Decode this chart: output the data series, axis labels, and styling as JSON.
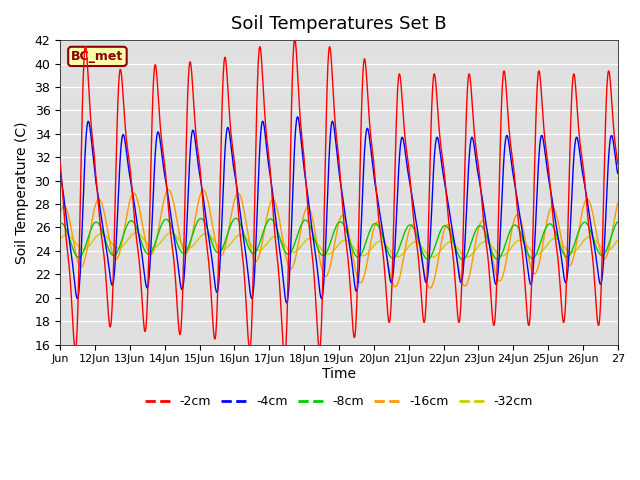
{
  "title": "Soil Temperatures Set B",
  "xlabel": "Time",
  "ylabel": "Soil Temperature (C)",
  "ylim": [
    16,
    42
  ],
  "yticks": [
    16,
    18,
    20,
    22,
    24,
    26,
    28,
    30,
    32,
    34,
    36,
    38,
    40,
    42
  ],
  "annotation": "BC_met",
  "bg_color": "#e0e0e0",
  "colors": {
    "-2cm": "#ff0000",
    "-4cm": "#0000ff",
    "-8cm": "#00cc00",
    "-16cm": "#ff9900",
    "-32cm": "#cccc00"
  },
  "legend_labels": [
    "-2cm",
    "-4cm",
    "-8cm",
    "-16cm",
    "-32cm"
  ],
  "xtick_labels": [
    "Jun",
    "12Jun",
    "13Jun",
    "14Jun",
    "15Jun",
    "16Jun",
    "17Jun",
    "18Jun",
    "19Jun",
    "20Jun",
    "21Jun",
    "22Jun",
    "23Jun",
    "24Jun",
    "25Jun",
    "26Jun",
    "27"
  ]
}
